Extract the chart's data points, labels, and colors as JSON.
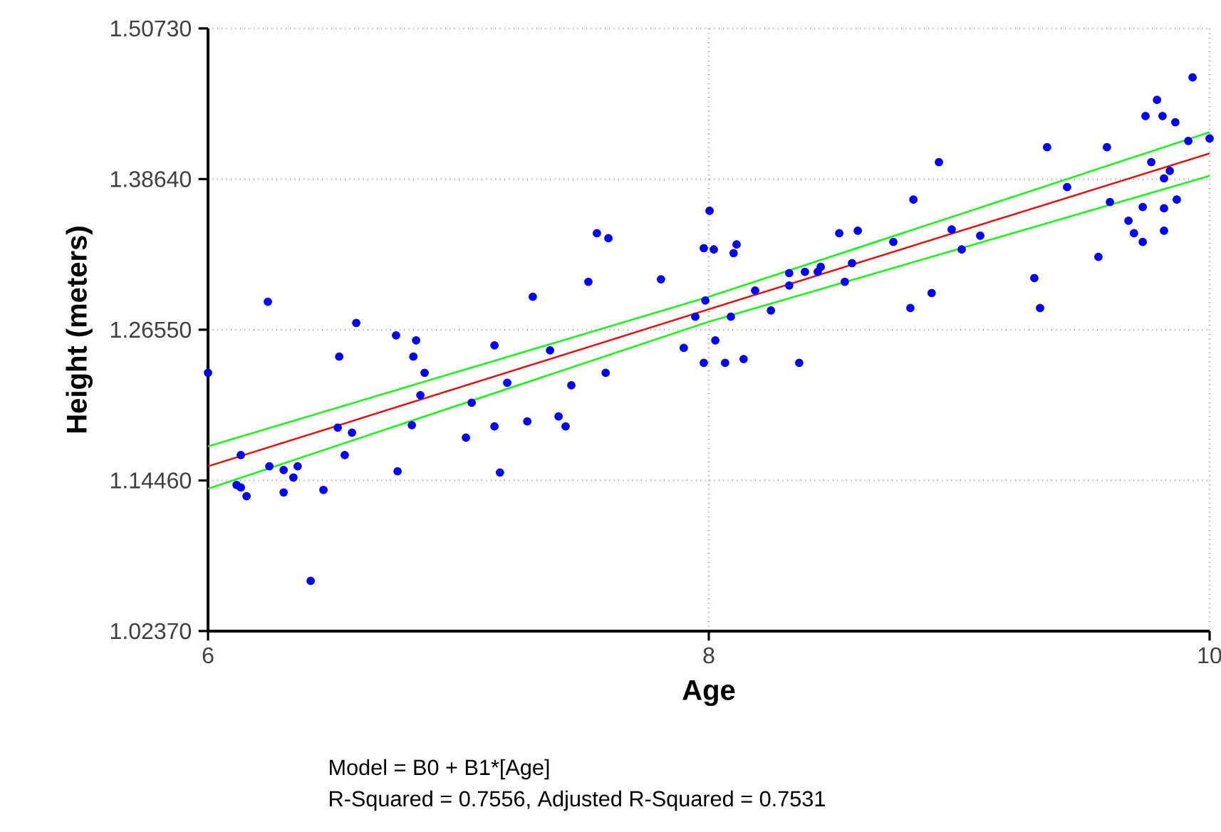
{
  "chart_data": {
    "type": "scatter",
    "xlabel": "Age",
    "ylabel": "Height (meters)",
    "xlim": [
      6,
      10
    ],
    "ylim": [
      1.0237,
      1.5073
    ],
    "xticks": [
      6,
      8,
      10
    ],
    "yticks": [
      {
        "value": 1.0237,
        "label": "1.02370"
      },
      {
        "value": 1.1446,
        "label": "1.14460"
      },
      {
        "value": 1.2655,
        "label": "1.26550"
      },
      {
        "value": 1.3864,
        "label": "1.38640"
      },
      {
        "value": 1.5073,
        "label": "1.50730"
      }
    ],
    "grid": true,
    "series": [
      {
        "marker": "circle",
        "color": "#0000ff",
        "x": [
          6.0,
          6.131,
          6.114,
          6.131,
          6.154,
          6.239,
          6.245,
          6.302,
          6.358,
          6.341,
          6.302,
          6.41,
          6.461,
          6.518,
          6.524,
          6.546,
          6.575,
          6.592,
          6.751,
          6.757,
          6.814,
          6.82,
          6.831,
          6.848,
          6.865,
          7.03,
          7.053,
          7.144,
          7.144,
          7.166,
          7.195,
          7.275,
          7.297,
          7.366,
          7.4,
          7.428,
          7.451,
          7.519,
          7.553,
          7.588,
          7.599,
          7.809,
          7.9,
          7.946,
          7.98,
          7.98,
          7.986,
          8.003,
          8.02,
          8.026,
          8.065,
          8.088,
          8.099,
          8.111,
          8.139,
          8.185,
          8.248,
          8.321,
          8.321,
          8.361,
          8.384,
          8.435,
          8.447,
          8.521,
          8.543,
          8.572,
          8.595,
          8.737,
          8.805,
          8.817,
          8.89,
          8.919,
          8.97,
          9.01,
          9.084,
          9.3,
          9.323,
          9.351,
          9.431,
          9.556,
          9.59,
          9.602,
          9.676,
          9.698,
          9.733,
          9.733,
          9.744,
          9.767,
          9.79,
          9.812,
          9.818,
          9.818,
          9.818,
          9.841,
          9.863,
          9.869,
          9.915,
          9.932,
          10.0
        ],
        "values": [
          1.231,
          1.165,
          1.141,
          1.139,
          1.132,
          1.288,
          1.156,
          1.153,
          1.156,
          1.147,
          1.135,
          1.064,
          1.137,
          1.187,
          1.244,
          1.165,
          1.183,
          1.271,
          1.261,
          1.152,
          1.189,
          1.244,
          1.257,
          1.213,
          1.231,
          1.179,
          1.207,
          1.253,
          1.188,
          1.151,
          1.223,
          1.192,
          1.292,
          1.249,
          1.196,
          1.188,
          1.221,
          1.304,
          1.343,
          1.231,
          1.339,
          1.306,
          1.251,
          1.276,
          1.239,
          1.331,
          1.289,
          1.361,
          1.33,
          1.257,
          1.239,
          1.276,
          1.327,
          1.334,
          1.242,
          1.297,
          1.281,
          1.311,
          1.301,
          1.239,
          1.312,
          1.312,
          1.316,
          1.343,
          1.304,
          1.319,
          1.345,
          1.336,
          1.283,
          1.37,
          1.295,
          1.4,
          1.346,
          1.33,
          1.341,
          1.307,
          1.283,
          1.412,
          1.38,
          1.324,
          1.412,
          1.368,
          1.353,
          1.343,
          1.336,
          1.364,
          1.437,
          1.4,
          1.45,
          1.437,
          1.387,
          1.363,
          1.345,
          1.393,
          1.432,
          1.37,
          1.417,
          1.468,
          1.419
        ]
      },
      {
        "type": "line",
        "marker": "none",
        "color": "#ff0000",
        "x": [
          6,
          8,
          10
        ],
        "values": [
          1.156,
          1.282,
          1.407
        ]
      },
      {
        "type": "line",
        "marker": "none",
        "color": "#00ff00",
        "x": [
          6,
          8,
          10
        ],
        "values": [
          1.172,
          1.292,
          1.424
        ]
      },
      {
        "type": "line",
        "marker": "none",
        "color": "#00ff00",
        "x": [
          6,
          8,
          10
        ],
        "values": [
          1.138,
          1.272,
          1.389
        ]
      }
    ],
    "annotations": [
      "Model = B0 + B1*[Age]",
      "R-Squared = 0.7556,   Adjusted R-Squared = 0.7531"
    ]
  }
}
